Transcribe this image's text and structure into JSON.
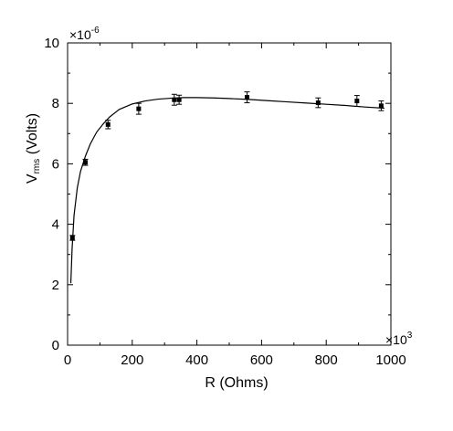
{
  "chart_data": {
    "type": "scatter",
    "xlabel": "R (Ohms)",
    "ylabel": {
      "main": "V",
      "subscript": "rms",
      "suffix": " (Volts)"
    },
    "x_multiplier": {
      "base": "×10",
      "exponent": "3"
    },
    "y_multiplier": {
      "base": "×10",
      "exponent": "-6"
    },
    "xlim": [
      0,
      1000
    ],
    "ylim": [
      0,
      10
    ],
    "x_ticks": [
      0,
      200,
      400,
      600,
      800,
      1000
    ],
    "y_ticks": [
      0,
      2,
      4,
      6,
      8,
      10
    ],
    "x_tick_labels": [
      "0",
      "200",
      "400",
      "600",
      "800",
      "1000"
    ],
    "y_tick_labels": [
      "0",
      "2",
      "4",
      "6",
      "8",
      "10"
    ],
    "grid": false,
    "series": [
      {
        "type": "scatter-errorbar",
        "x": [
          15,
          55,
          125,
          220,
          330,
          345,
          555,
          775,
          895,
          970
        ],
        "y": [
          3.55,
          6.05,
          7.3,
          7.82,
          8.12,
          8.12,
          8.2,
          8.02,
          8.08,
          7.92
        ],
        "yerr": [
          0.08,
          0.1,
          0.14,
          0.18,
          0.18,
          0.15,
          0.18,
          0.16,
          0.18,
          0.16
        ]
      },
      {
        "type": "line",
        "x": [
          10,
          14,
          20,
          30,
          40,
          55,
          70,
          90,
          110,
          130,
          160,
          200,
          240,
          280,
          320,
          360,
          400,
          450,
          500,
          560,
          620,
          680,
          740,
          800,
          860,
          920,
          980
        ],
        "y": [
          2.05,
          3.2,
          4.3,
          5.2,
          5.75,
          6.25,
          6.65,
          7.05,
          7.32,
          7.55,
          7.8,
          7.98,
          8.08,
          8.14,
          8.17,
          8.19,
          8.19,
          8.18,
          8.16,
          8.13,
          8.09,
          8.05,
          8.01,
          7.97,
          7.93,
          7.88,
          7.84
        ]
      }
    ]
  }
}
